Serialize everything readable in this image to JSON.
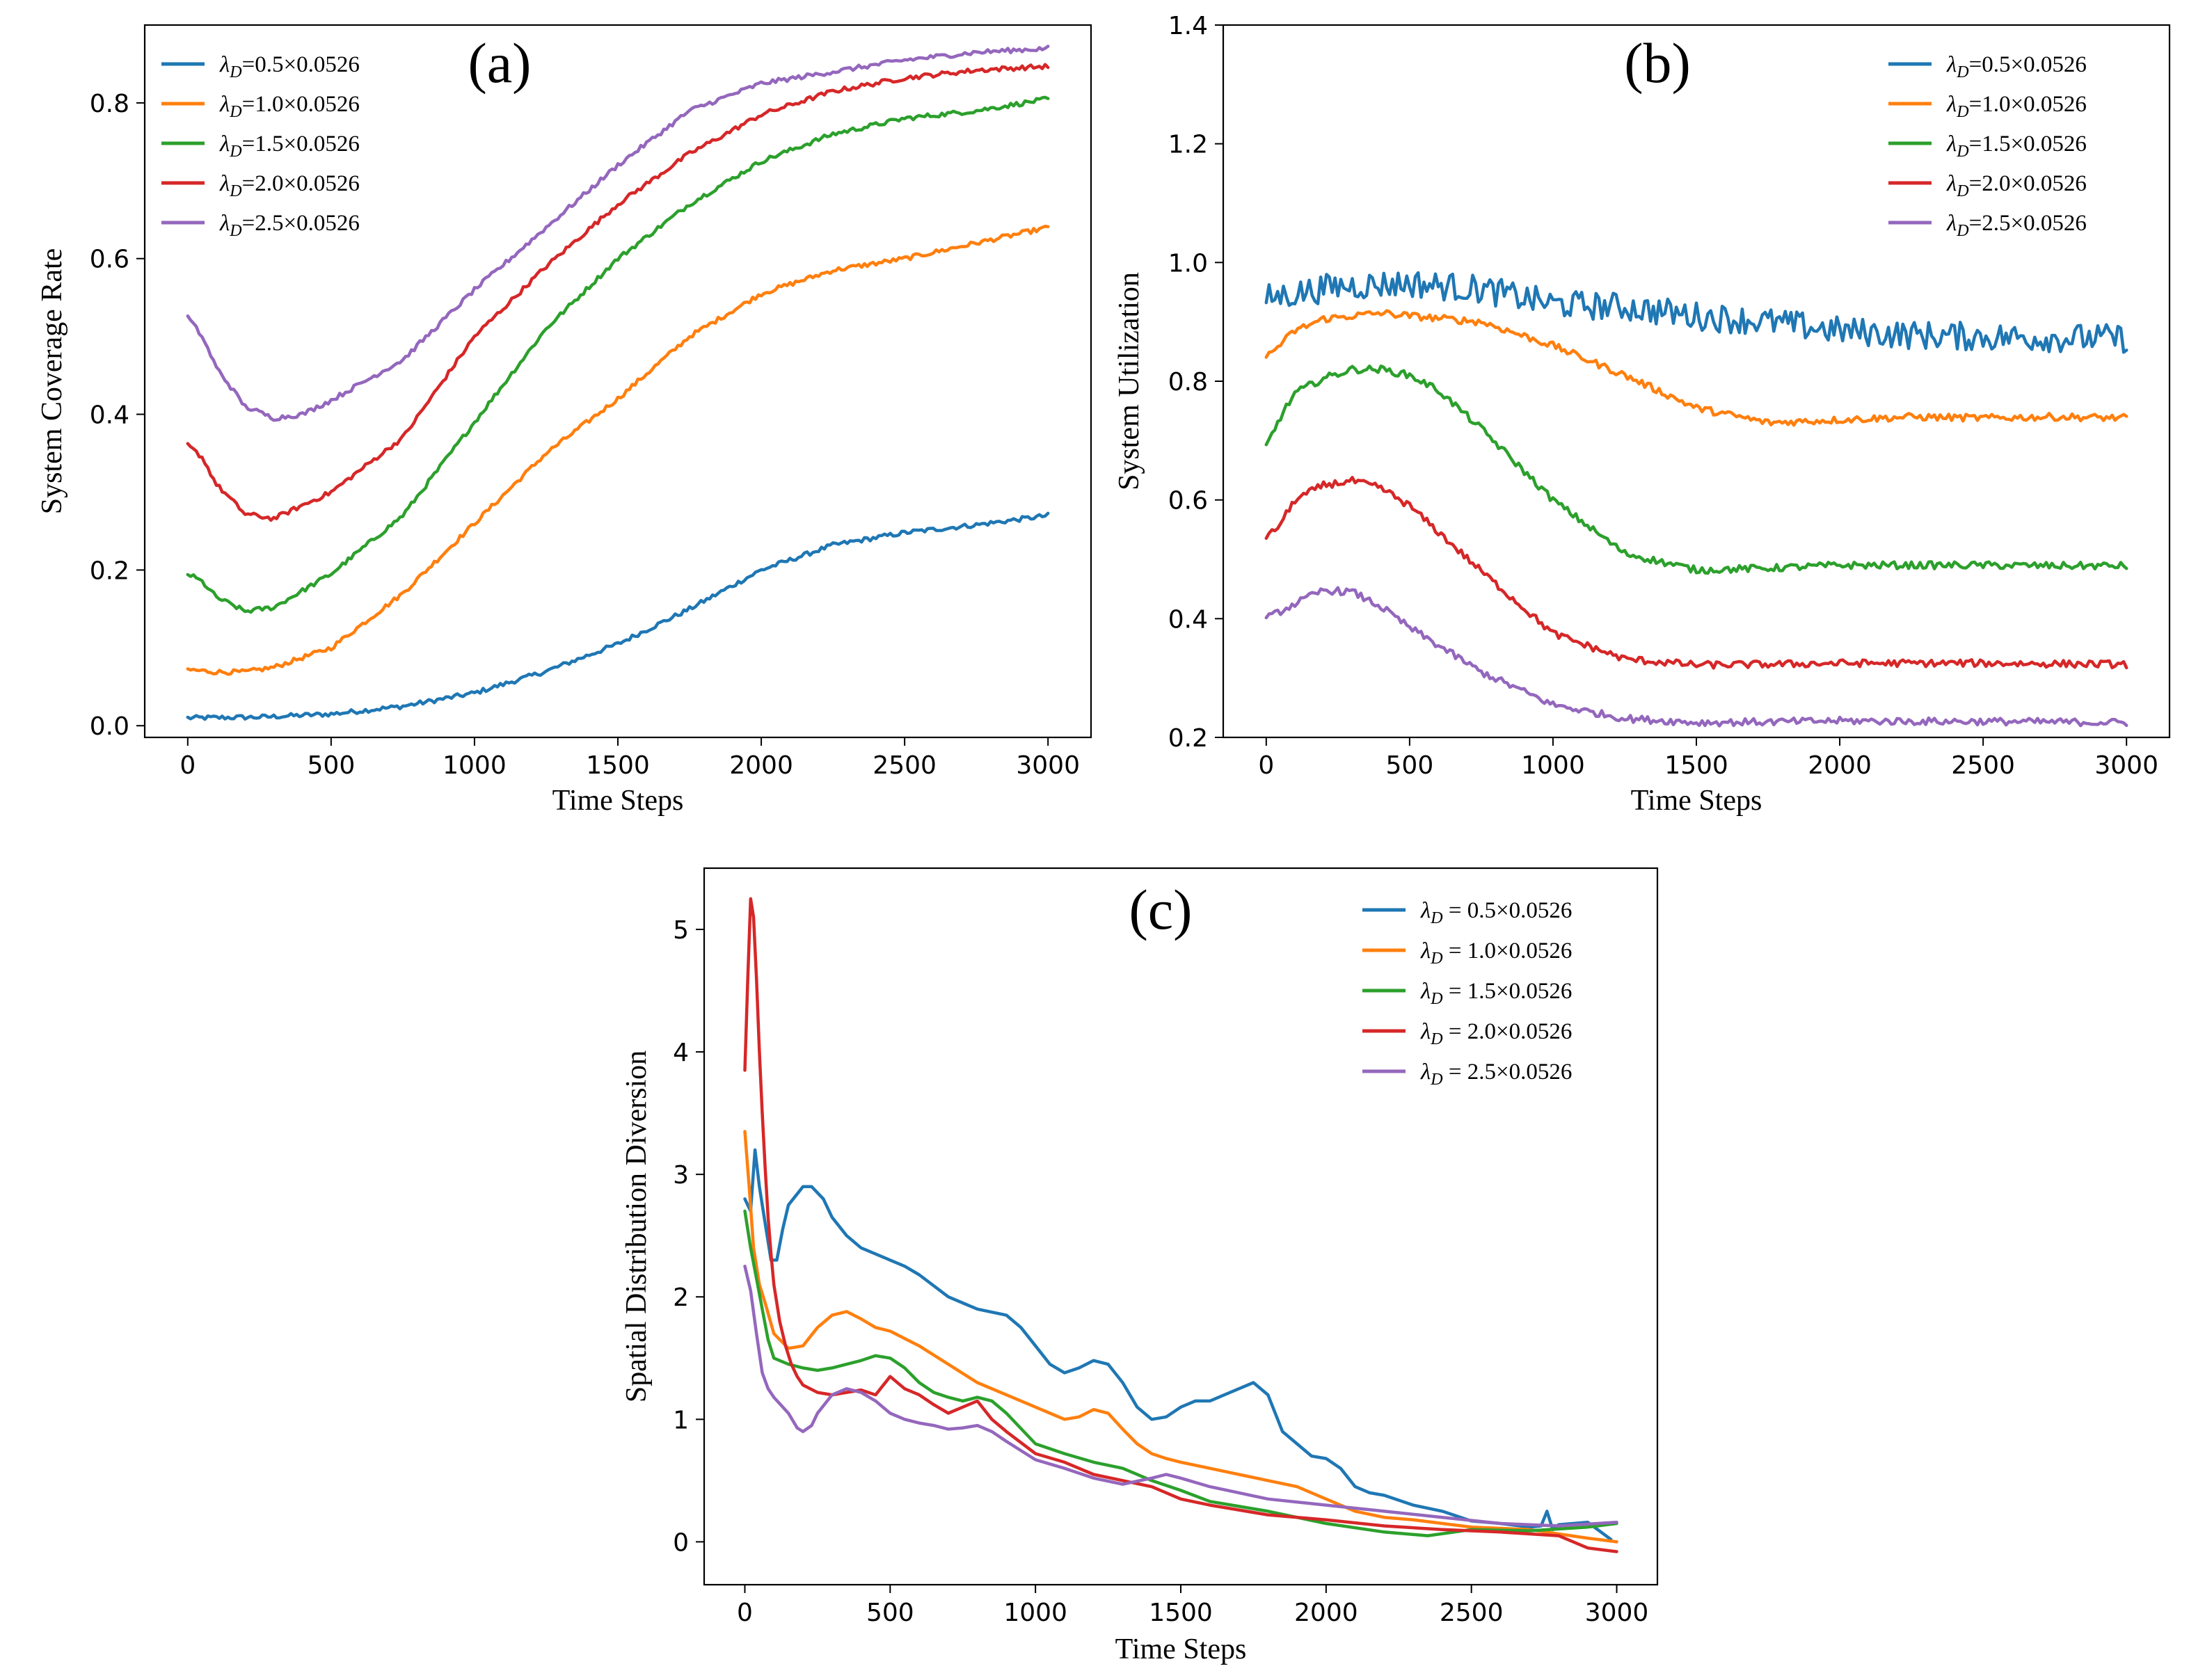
{
  "colors": {
    "blue": "#1f77b4",
    "orange": "#ff7f0e",
    "green": "#2ca02c",
    "red": "#d62728",
    "purple": "#9467bd"
  },
  "chart_data": [
    {
      "type": "line",
      "panel_label": "(a)",
      "title": "",
      "xlabel": "Time Steps",
      "ylabel": "System Coverage Rate",
      "xlim": [
        -150,
        3150
      ],
      "ylim": [
        -0.015,
        0.9
      ],
      "xticks": [
        0,
        500,
        1000,
        1500,
        2000,
        2500,
        3000
      ],
      "yticks": [
        0.0,
        0.2,
        0.4,
        0.6,
        0.8
      ],
      "ytick_labels": [
        "0.0",
        "0.2",
        "0.4",
        "0.6",
        "0.8"
      ],
      "legend_position": "top-left",
      "noise": 0.003,
      "series": [
        {
          "name": "0.5×0.0526",
          "legend_prefix": "λ",
          "legend_sub": "D",
          "legend_sep": "=",
          "color": "blue",
          "x": [
            0,
            250,
            500,
            750,
            1000,
            1250,
            1500,
            1750,
            2000,
            2250,
            2500,
            2750,
            3000
          ],
          "y": [
            0.01,
            0.011,
            0.015,
            0.025,
            0.042,
            0.07,
            0.105,
            0.15,
            0.2,
            0.232,
            0.248,
            0.258,
            0.27
          ]
        },
        {
          "name": "1.0×0.0526",
          "legend_prefix": "λ",
          "legend_sub": "D",
          "legend_sep": "=",
          "color": "orange",
          "x": [
            0,
            100,
            200,
            300,
            500,
            750,
            1000,
            1250,
            1500,
            1750,
            2000,
            2250,
            2500,
            2750,
            3000
          ],
          "y": [
            0.072,
            0.069,
            0.069,
            0.075,
            0.1,
            0.17,
            0.26,
            0.35,
            0.42,
            0.5,
            0.555,
            0.585,
            0.6,
            0.62,
            0.64
          ]
        },
        {
          "name": "1.5×0.0526",
          "legend_prefix": "λ",
          "legend_sub": "D",
          "legend_sep": "=",
          "color": "green",
          "x": [
            0,
            50,
            100,
            200,
            300,
            500,
            750,
            1000,
            1250,
            1500,
            1750,
            2000,
            2250,
            2500,
            2750,
            3000
          ],
          "y": [
            0.195,
            0.185,
            0.165,
            0.147,
            0.152,
            0.195,
            0.27,
            0.39,
            0.51,
            0.6,
            0.67,
            0.725,
            0.76,
            0.78,
            0.79,
            0.805
          ]
        },
        {
          "name": "2.0×0.0526",
          "legend_prefix": "λ",
          "legend_sub": "D",
          "legend_sep": "=",
          "color": "red",
          "x": [
            0,
            50,
            100,
            200,
            300,
            500,
            750,
            1000,
            1250,
            1500,
            1750,
            2000,
            2250,
            2500,
            2750,
            3000
          ],
          "y": [
            0.36,
            0.345,
            0.31,
            0.272,
            0.266,
            0.3,
            0.37,
            0.5,
            0.59,
            0.67,
            0.735,
            0.785,
            0.815,
            0.832,
            0.842,
            0.847
          ]
        },
        {
          "name": "2.5×0.0526",
          "legend_prefix": "λ",
          "legend_sub": "D",
          "legend_sep": "=",
          "color": "purple",
          "x": [
            0,
            50,
            100,
            200,
            300,
            400,
            500,
            750,
            1000,
            1250,
            1500,
            1750,
            2000,
            2250,
            2500,
            2750,
            3000
          ],
          "y": [
            0.525,
            0.5,
            0.46,
            0.41,
            0.395,
            0.4,
            0.418,
            0.47,
            0.56,
            0.64,
            0.72,
            0.79,
            0.825,
            0.84,
            0.855,
            0.865,
            0.87
          ]
        }
      ]
    },
    {
      "type": "line",
      "panel_label": "(b)",
      "title": "",
      "xlabel": "Time Steps",
      "ylabel": "System Utilization",
      "xlim": [
        -150,
        3150
      ],
      "ylim": [
        0.2,
        1.4
      ],
      "xticks": [
        0,
        500,
        1000,
        1500,
        2000,
        2500,
        3000
      ],
      "yticks": [
        0.2,
        0.4,
        0.6,
        0.8,
        1.0,
        1.2,
        1.4
      ],
      "ytick_labels": [
        "0.2",
        "0.4",
        "0.6",
        "0.8",
        "1.0",
        "1.2",
        "1.4"
      ],
      "legend_position": "top-right",
      "noise": 0.006,
      "series": [
        {
          "name": "0.5×0.0526",
          "legend_prefix": "λ",
          "legend_sub": "D",
          "legend_sep": "=",
          "color": "blue",
          "extra_noise": 0.018,
          "x": [
            0,
            250,
            500,
            750,
            1000,
            1250,
            1500,
            1750,
            2000,
            2250,
            2500,
            2750,
            3000
          ],
          "y": [
            0.94,
            0.96,
            0.965,
            0.955,
            0.93,
            0.925,
            0.91,
            0.9,
            0.885,
            0.878,
            0.875,
            0.873,
            0.872
          ]
        },
        {
          "name": "1.0×0.0526",
          "legend_prefix": "λ",
          "legend_sub": "D",
          "legend_sep": "=",
          "color": "orange",
          "x": [
            0,
            100,
            200,
            300,
            400,
            500,
            750,
            1000,
            1250,
            1500,
            1750,
            2000,
            2250,
            2500,
            2750,
            3000
          ],
          "y": [
            0.84,
            0.885,
            0.905,
            0.91,
            0.915,
            0.91,
            0.9,
            0.86,
            0.81,
            0.755,
            0.73,
            0.735,
            0.74,
            0.738,
            0.74,
            0.738
          ]
        },
        {
          "name": "1.5×0.0526",
          "legend_prefix": "λ",
          "legend_sub": "D",
          "legend_sep": "=",
          "color": "green",
          "x": [
            0,
            50,
            100,
            200,
            300,
            400,
            500,
            600,
            750,
            1000,
            1250,
            1500,
            1750,
            2000,
            2250,
            2500,
            2750,
            3000
          ],
          "y": [
            0.69,
            0.74,
            0.78,
            0.805,
            0.82,
            0.82,
            0.81,
            0.785,
            0.72,
            0.6,
            0.51,
            0.482,
            0.485,
            0.49,
            0.49,
            0.49,
            0.489,
            0.489
          ]
        },
        {
          "name": "2.0×0.0526",
          "legend_prefix": "λ",
          "legend_sub": "D",
          "legend_sep": "=",
          "color": "red",
          "x": [
            0,
            50,
            100,
            200,
            300,
            400,
            500,
            750,
            1000,
            1250,
            1500,
            1750,
            2000,
            2250,
            2500,
            2750,
            3000
          ],
          "y": [
            0.535,
            0.56,
            0.6,
            0.625,
            0.632,
            0.62,
            0.59,
            0.48,
            0.375,
            0.332,
            0.322,
            0.323,
            0.325,
            0.325,
            0.325,
            0.324,
            0.323
          ]
        },
        {
          "name": "2.5×0.0526",
          "legend_prefix": "λ",
          "legend_sub": "D",
          "legend_sep": "=",
          "color": "purple",
          "x": [
            0,
            100,
            200,
            300,
            400,
            500,
            750,
            1000,
            1250,
            1500,
            1750,
            2000,
            2250,
            2500,
            2750,
            3000
          ],
          "y": [
            0.4,
            0.425,
            0.448,
            0.445,
            0.42,
            0.385,
            0.31,
            0.255,
            0.232,
            0.225,
            0.226,
            0.228,
            0.227,
            0.227,
            0.226,
            0.225
          ]
        }
      ]
    },
    {
      "type": "line",
      "panel_label": "(c)",
      "title": "",
      "xlabel": "Time Steps",
      "ylabel": "Spatial Distribution Diversion",
      "xlim": [
        -140,
        3140
      ],
      "ylim": [
        -0.35,
        5.5
      ],
      "xticks": [
        0,
        500,
        1000,
        1500,
        2000,
        2500,
        3000
      ],
      "yticks": [
        0,
        1,
        2,
        3,
        4,
        5
      ],
      "ytick_labels": [
        "0",
        "1",
        "2",
        "3",
        "4",
        "5"
      ],
      "legend_position": "top-right",
      "noise": 0.0,
      "series": [
        {
          "name": "0.5×0.0526",
          "legend_prefix": "λ",
          "legend_sub": "D",
          "legend_sep": " = ",
          "color": "blue",
          "x": [
            0,
            20,
            35,
            50,
            70,
            90,
            110,
            130,
            150,
            200,
            230,
            270,
            300,
            350,
            400,
            450,
            500,
            550,
            600,
            700,
            750,
            800,
            900,
            950,
            1000,
            1050,
            1100,
            1150,
            1200,
            1250,
            1300,
            1350,
            1400,
            1450,
            1500,
            1550,
            1600,
            1650,
            1700,
            1750,
            1800,
            1850,
            1900,
            1950,
            2000,
            2050,
            2100,
            2150,
            2200,
            2300,
            2400,
            2500,
            2600,
            2700,
            2740,
            2760,
            2780,
            2800,
            2900,
            2980
          ],
          "y": [
            2.8,
            2.7,
            3.2,
            2.9,
            2.6,
            2.3,
            2.3,
            2.55,
            2.75,
            2.9,
            2.9,
            2.8,
            2.65,
            2.5,
            2.4,
            2.35,
            2.3,
            2.25,
            2.18,
            2.0,
            1.95,
            1.9,
            1.85,
            1.75,
            1.6,
            1.45,
            1.38,
            1.42,
            1.48,
            1.45,
            1.3,
            1.1,
            1.0,
            1.02,
            1.1,
            1.15,
            1.15,
            1.2,
            1.25,
            1.3,
            1.2,
            0.9,
            0.8,
            0.7,
            0.68,
            0.6,
            0.45,
            0.4,
            0.38,
            0.3,
            0.25,
            0.17,
            0.15,
            0.12,
            0.13,
            0.25,
            0.1,
            0.14,
            0.16,
            0.02
          ]
        },
        {
          "name": "1.0×0.0526",
          "legend_prefix": "λ",
          "legend_sub": "D",
          "legend_sep": " = ",
          "color": "orange",
          "x": [
            0,
            15,
            30,
            50,
            70,
            100,
            150,
            200,
            250,
            300,
            350,
            400,
            450,
            500,
            600,
            700,
            800,
            900,
            1000,
            1050,
            1100,
            1150,
            1200,
            1250,
            1300,
            1350,
            1400,
            1450,
            1500,
            1600,
            1700,
            1800,
            1900,
            2000,
            2100,
            2200,
            2300,
            2400,
            2500,
            2700,
            2900,
            3000
          ],
          "y": [
            3.35,
            2.9,
            2.4,
            2.1,
            1.95,
            1.7,
            1.58,
            1.6,
            1.75,
            1.85,
            1.88,
            1.82,
            1.75,
            1.72,
            1.6,
            1.45,
            1.3,
            1.2,
            1.1,
            1.05,
            1.0,
            1.02,
            1.08,
            1.05,
            0.92,
            0.8,
            0.72,
            0.68,
            0.65,
            0.6,
            0.55,
            0.5,
            0.45,
            0.35,
            0.25,
            0.2,
            0.18,
            0.15,
            0.12,
            0.1,
            0.03,
            0.0
          ]
        },
        {
          "name": "1.5×0.0526",
          "legend_prefix": "λ",
          "legend_sub": "D",
          "legend_sep": " = ",
          "color": "green",
          "x": [
            0,
            20,
            40,
            60,
            80,
            100,
            150,
            200,
            250,
            300,
            350,
            400,
            450,
            500,
            550,
            600,
            650,
            700,
            750,
            800,
            850,
            900,
            1000,
            1100,
            1200,
            1300,
            1400,
            1500,
            1600,
            1800,
            2000,
            2200,
            2350,
            2500,
            2700,
            2900,
            3000
          ],
          "y": [
            2.7,
            2.4,
            2.15,
            1.9,
            1.65,
            1.5,
            1.45,
            1.42,
            1.4,
            1.42,
            1.45,
            1.48,
            1.52,
            1.5,
            1.42,
            1.3,
            1.22,
            1.18,
            1.15,
            1.18,
            1.15,
            1.05,
            0.8,
            0.72,
            0.65,
            0.6,
            0.5,
            0.42,
            0.33,
            0.25,
            0.15,
            0.08,
            0.05,
            0.1,
            0.09,
            0.12,
            0.15
          ]
        },
        {
          "name": "2.0×0.0526",
          "legend_prefix": "λ",
          "legend_sub": "D",
          "legend_sep": " = ",
          "color": "red",
          "x": [
            0,
            10,
            20,
            30,
            40,
            50,
            60,
            70,
            80,
            90,
            100,
            120,
            140,
            160,
            180,
            200,
            250,
            300,
            350,
            400,
            450,
            500,
            550,
            600,
            650,
            700,
            750,
            800,
            850,
            900,
            1000,
            1100,
            1200,
            1300,
            1400,
            1500,
            1600,
            1800,
            2000,
            2200,
            2400,
            2600,
            2800,
            2900,
            3000
          ],
          "y": [
            3.85,
            4.6,
            5.25,
            5.1,
            4.6,
            4.0,
            3.5,
            3.05,
            2.65,
            2.35,
            2.1,
            1.8,
            1.6,
            1.45,
            1.35,
            1.28,
            1.22,
            1.2,
            1.22,
            1.24,
            1.2,
            1.35,
            1.25,
            1.2,
            1.12,
            1.05,
            1.1,
            1.15,
            1.0,
            0.9,
            0.72,
            0.65,
            0.55,
            0.5,
            0.45,
            0.35,
            0.3,
            0.22,
            0.18,
            0.13,
            0.1,
            0.08,
            0.05,
            -0.05,
            -0.08
          ]
        },
        {
          "name": "2.5×0.0526",
          "legend_prefix": "λ",
          "legend_sub": "D",
          "legend_sep": " = ",
          "color": "purple",
          "x": [
            0,
            20,
            40,
            60,
            80,
            100,
            150,
            180,
            200,
            230,
            250,
            300,
            350,
            400,
            450,
            500,
            550,
            600,
            650,
            700,
            750,
            800,
            850,
            900,
            1000,
            1100,
            1200,
            1300,
            1400,
            1450,
            1500,
            1600,
            1700,
            1800,
            2000,
            2200,
            2400,
            2600,
            2800,
            3000
          ],
          "y": [
            2.25,
            2.05,
            1.7,
            1.38,
            1.25,
            1.18,
            1.05,
            0.93,
            0.9,
            0.95,
            1.05,
            1.2,
            1.25,
            1.22,
            1.15,
            1.05,
            1.0,
            0.97,
            0.95,
            0.92,
            0.93,
            0.95,
            0.9,
            0.82,
            0.67,
            0.6,
            0.52,
            0.47,
            0.52,
            0.55,
            0.52,
            0.45,
            0.4,
            0.35,
            0.3,
            0.25,
            0.2,
            0.15,
            0.13,
            0.16
          ]
        }
      ]
    }
  ]
}
